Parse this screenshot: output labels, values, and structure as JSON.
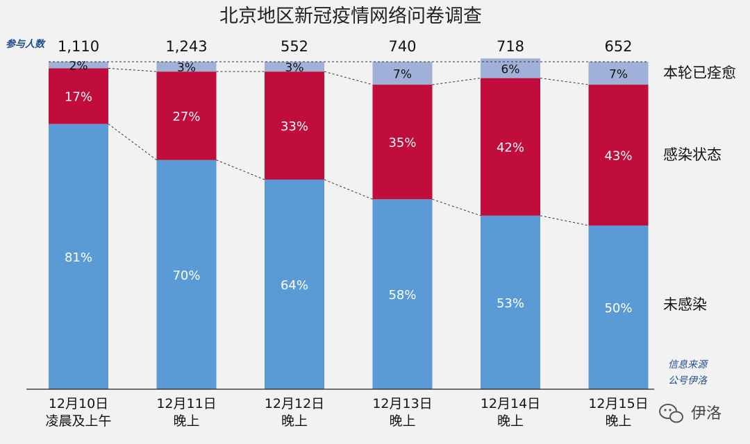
{
  "chart_data": {
    "type": "bar",
    "stacked": true,
    "title": "北京地区新冠疫情网络问卷调查",
    "count_label": "参与人数",
    "categories": [
      [
        "12月10日",
        "凌晨及上午"
      ],
      [
        "12月11日",
        "晚上"
      ],
      [
        "12月12日",
        "晚上"
      ],
      [
        "12月13日",
        "晚上"
      ],
      [
        "12月14日",
        "晚上"
      ],
      [
        "12月15日",
        "晚上"
      ]
    ],
    "participants": [
      "1,110",
      "1,243",
      "552",
      "740",
      "718",
      "652"
    ],
    "series": [
      {
        "name": "未感染",
        "color": "#5b9bd5",
        "values": [
          81,
          70,
          64,
          58,
          53,
          50
        ]
      },
      {
        "name": "感染状态",
        "color": "#c00d3c",
        "values": [
          17,
          27,
          33,
          35,
          42,
          43
        ]
      },
      {
        "name": "本轮已痊愈",
        "color": "#9fb1d6",
        "values": [
          2,
          3,
          3,
          7,
          6,
          7
        ]
      }
    ],
    "value_suffix": "%",
    "ylim": [
      0,
      100
    ],
    "source_note": [
      "信息来源",
      "公号伊洛"
    ],
    "watermark": "伊洛"
  }
}
